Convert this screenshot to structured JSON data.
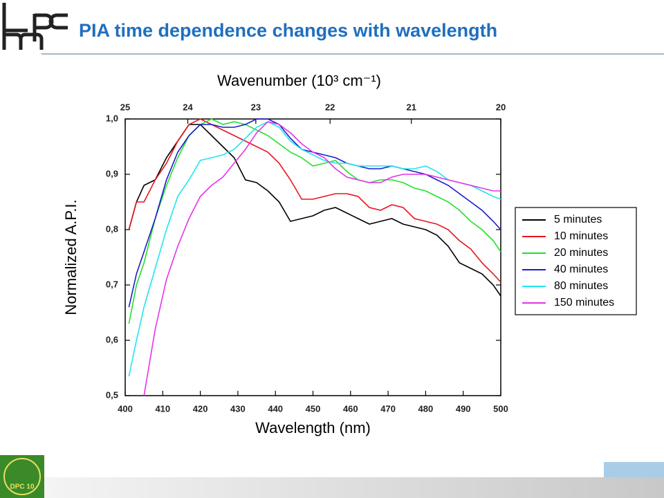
{
  "header": {
    "title": "PIA time dependence changes with wavelength"
  },
  "chart_data": {
    "type": "line",
    "xlabel": "Wavelength (nm)",
    "ylabel": "Normalized A.P.I.",
    "x2label": "Wavenumber (10³ cm⁻¹)",
    "xlim": [
      400,
      500
    ],
    "xticks": [
      400,
      410,
      420,
      430,
      440,
      450,
      460,
      470,
      480,
      490,
      500
    ],
    "ylim": [
      0.5,
      1.0
    ],
    "yticks": [
      {
        "value": 0.5,
        "label": "0,5"
      },
      {
        "value": 0.6,
        "label": "0,6"
      },
      {
        "value": 0.7,
        "label": "0,7"
      },
      {
        "value": 0.8,
        "label": "0,8"
      },
      {
        "value": 0.9,
        "label": "0,9"
      },
      {
        "value": 1.0,
        "label": "1,0"
      }
    ],
    "x2lim": [
      25,
      20
    ],
    "x2ticks": [
      25,
      24,
      23,
      22,
      21,
      20
    ],
    "x": [
      401,
      403,
      405,
      408,
      411,
      414,
      417,
      420,
      423,
      426,
      429,
      432,
      435,
      438,
      441,
      444,
      447,
      450,
      453,
      456,
      459,
      462,
      465,
      468,
      471,
      474,
      477,
      480,
      483,
      486,
      489,
      492,
      495,
      498,
      500
    ],
    "series": [
      {
        "name": "5 minutes",
        "color": "#000000",
        "values": [
          0.8,
          0.85,
          0.88,
          0.89,
          0.93,
          0.96,
          0.99,
          0.99,
          0.97,
          0.95,
          0.93,
          0.89,
          0.885,
          0.87,
          0.85,
          0.815,
          0.82,
          0.825,
          0.835,
          0.84,
          0.83,
          0.82,
          0.81,
          0.815,
          0.82,
          0.81,
          0.805,
          0.8,
          0.79,
          0.77,
          0.74,
          0.73,
          0.72,
          0.7,
          0.68
        ]
      },
      {
        "name": "10 minutes",
        "color": "#e8141c",
        "values": [
          0.8,
          0.85,
          0.85,
          0.89,
          0.92,
          0.96,
          0.99,
          1.0,
          0.99,
          0.98,
          0.97,
          0.96,
          0.95,
          0.94,
          0.92,
          0.89,
          0.855,
          0.855,
          0.86,
          0.865,
          0.865,
          0.86,
          0.84,
          0.835,
          0.845,
          0.84,
          0.82,
          0.815,
          0.81,
          0.8,
          0.78,
          0.765,
          0.74,
          0.72,
          0.705
        ]
      },
      {
        "name": "20 minutes",
        "color": "#22e02a",
        "values": [
          0.63,
          0.7,
          0.74,
          0.82,
          0.88,
          0.93,
          0.97,
          0.99,
          1.0,
          0.99,
          0.995,
          0.99,
          0.98,
          0.97,
          0.955,
          0.94,
          0.93,
          0.915,
          0.92,
          0.925,
          0.905,
          0.89,
          0.885,
          0.89,
          0.89,
          0.885,
          0.875,
          0.87,
          0.86,
          0.85,
          0.835,
          0.815,
          0.8,
          0.78,
          0.76
        ]
      },
      {
        "name": "40 minutes",
        "color": "#1a1acc",
        "values": [
          0.66,
          0.72,
          0.76,
          0.82,
          0.89,
          0.94,
          0.97,
          0.99,
          0.99,
          0.985,
          0.985,
          0.99,
          1.0,
          1.0,
          0.99,
          0.965,
          0.945,
          0.94,
          0.935,
          0.93,
          0.92,
          0.915,
          0.91,
          0.91,
          0.915,
          0.91,
          0.905,
          0.9,
          0.89,
          0.88,
          0.865,
          0.85,
          0.835,
          0.815,
          0.8
        ]
      },
      {
        "name": "80 minutes",
        "color": "#1ee6ee",
        "values": [
          0.535,
          0.6,
          0.66,
          0.73,
          0.8,
          0.86,
          0.89,
          0.925,
          0.93,
          0.935,
          0.945,
          0.965,
          0.985,
          0.995,
          0.985,
          0.96,
          0.945,
          0.935,
          0.925,
          0.92,
          0.92,
          0.915,
          0.915,
          0.915,
          0.915,
          0.91,
          0.91,
          0.915,
          0.905,
          0.89,
          0.885,
          0.88,
          0.87,
          0.86,
          0.855
        ]
      },
      {
        "name": "150 minutes",
        "color": "#e632e6",
        "values": [
          null,
          null,
          0.5,
          0.62,
          0.71,
          0.77,
          0.82,
          0.86,
          0.88,
          0.895,
          0.92,
          0.945,
          0.975,
          0.995,
          0.99,
          0.975,
          0.955,
          0.94,
          0.93,
          0.91,
          0.895,
          0.89,
          0.885,
          0.885,
          0.895,
          0.9,
          0.9,
          0.9,
          0.895,
          0.89,
          0.885,
          0.88,
          0.875,
          0.87,
          0.87
        ]
      }
    ]
  },
  "footer": {
    "logo_text": "DPC 10"
  }
}
